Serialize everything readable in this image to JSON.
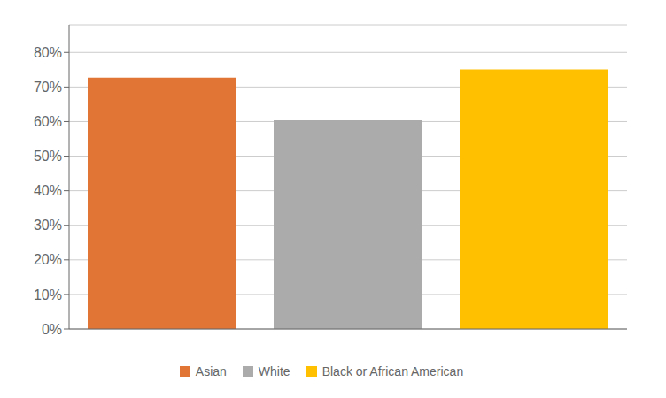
{
  "chart_data": {
    "type": "bar",
    "categories": [
      "Asian",
      "White",
      "Black or African American"
    ],
    "values": [
      0.727,
      0.604,
      0.751
    ],
    "colors": [
      "#E07535",
      "#ABABAB",
      "#FFC000"
    ],
    "ylim": [
      0,
      0.88
    ],
    "yticks": [
      {
        "value": 0.0,
        "label": "0%"
      },
      {
        "value": 0.1,
        "label": "10%"
      },
      {
        "value": 0.2,
        "label": "20%"
      },
      {
        "value": 0.3,
        "label": "30%"
      },
      {
        "value": 0.4,
        "label": "40%"
      },
      {
        "value": 0.5,
        "label": "50%"
      },
      {
        "value": 0.6,
        "label": "60%"
      },
      {
        "value": 0.7,
        "label": "70%"
      },
      {
        "value": 0.8,
        "label": "80%"
      }
    ],
    "grid": true,
    "legend": "bottom",
    "tick_labels": "y"
  }
}
